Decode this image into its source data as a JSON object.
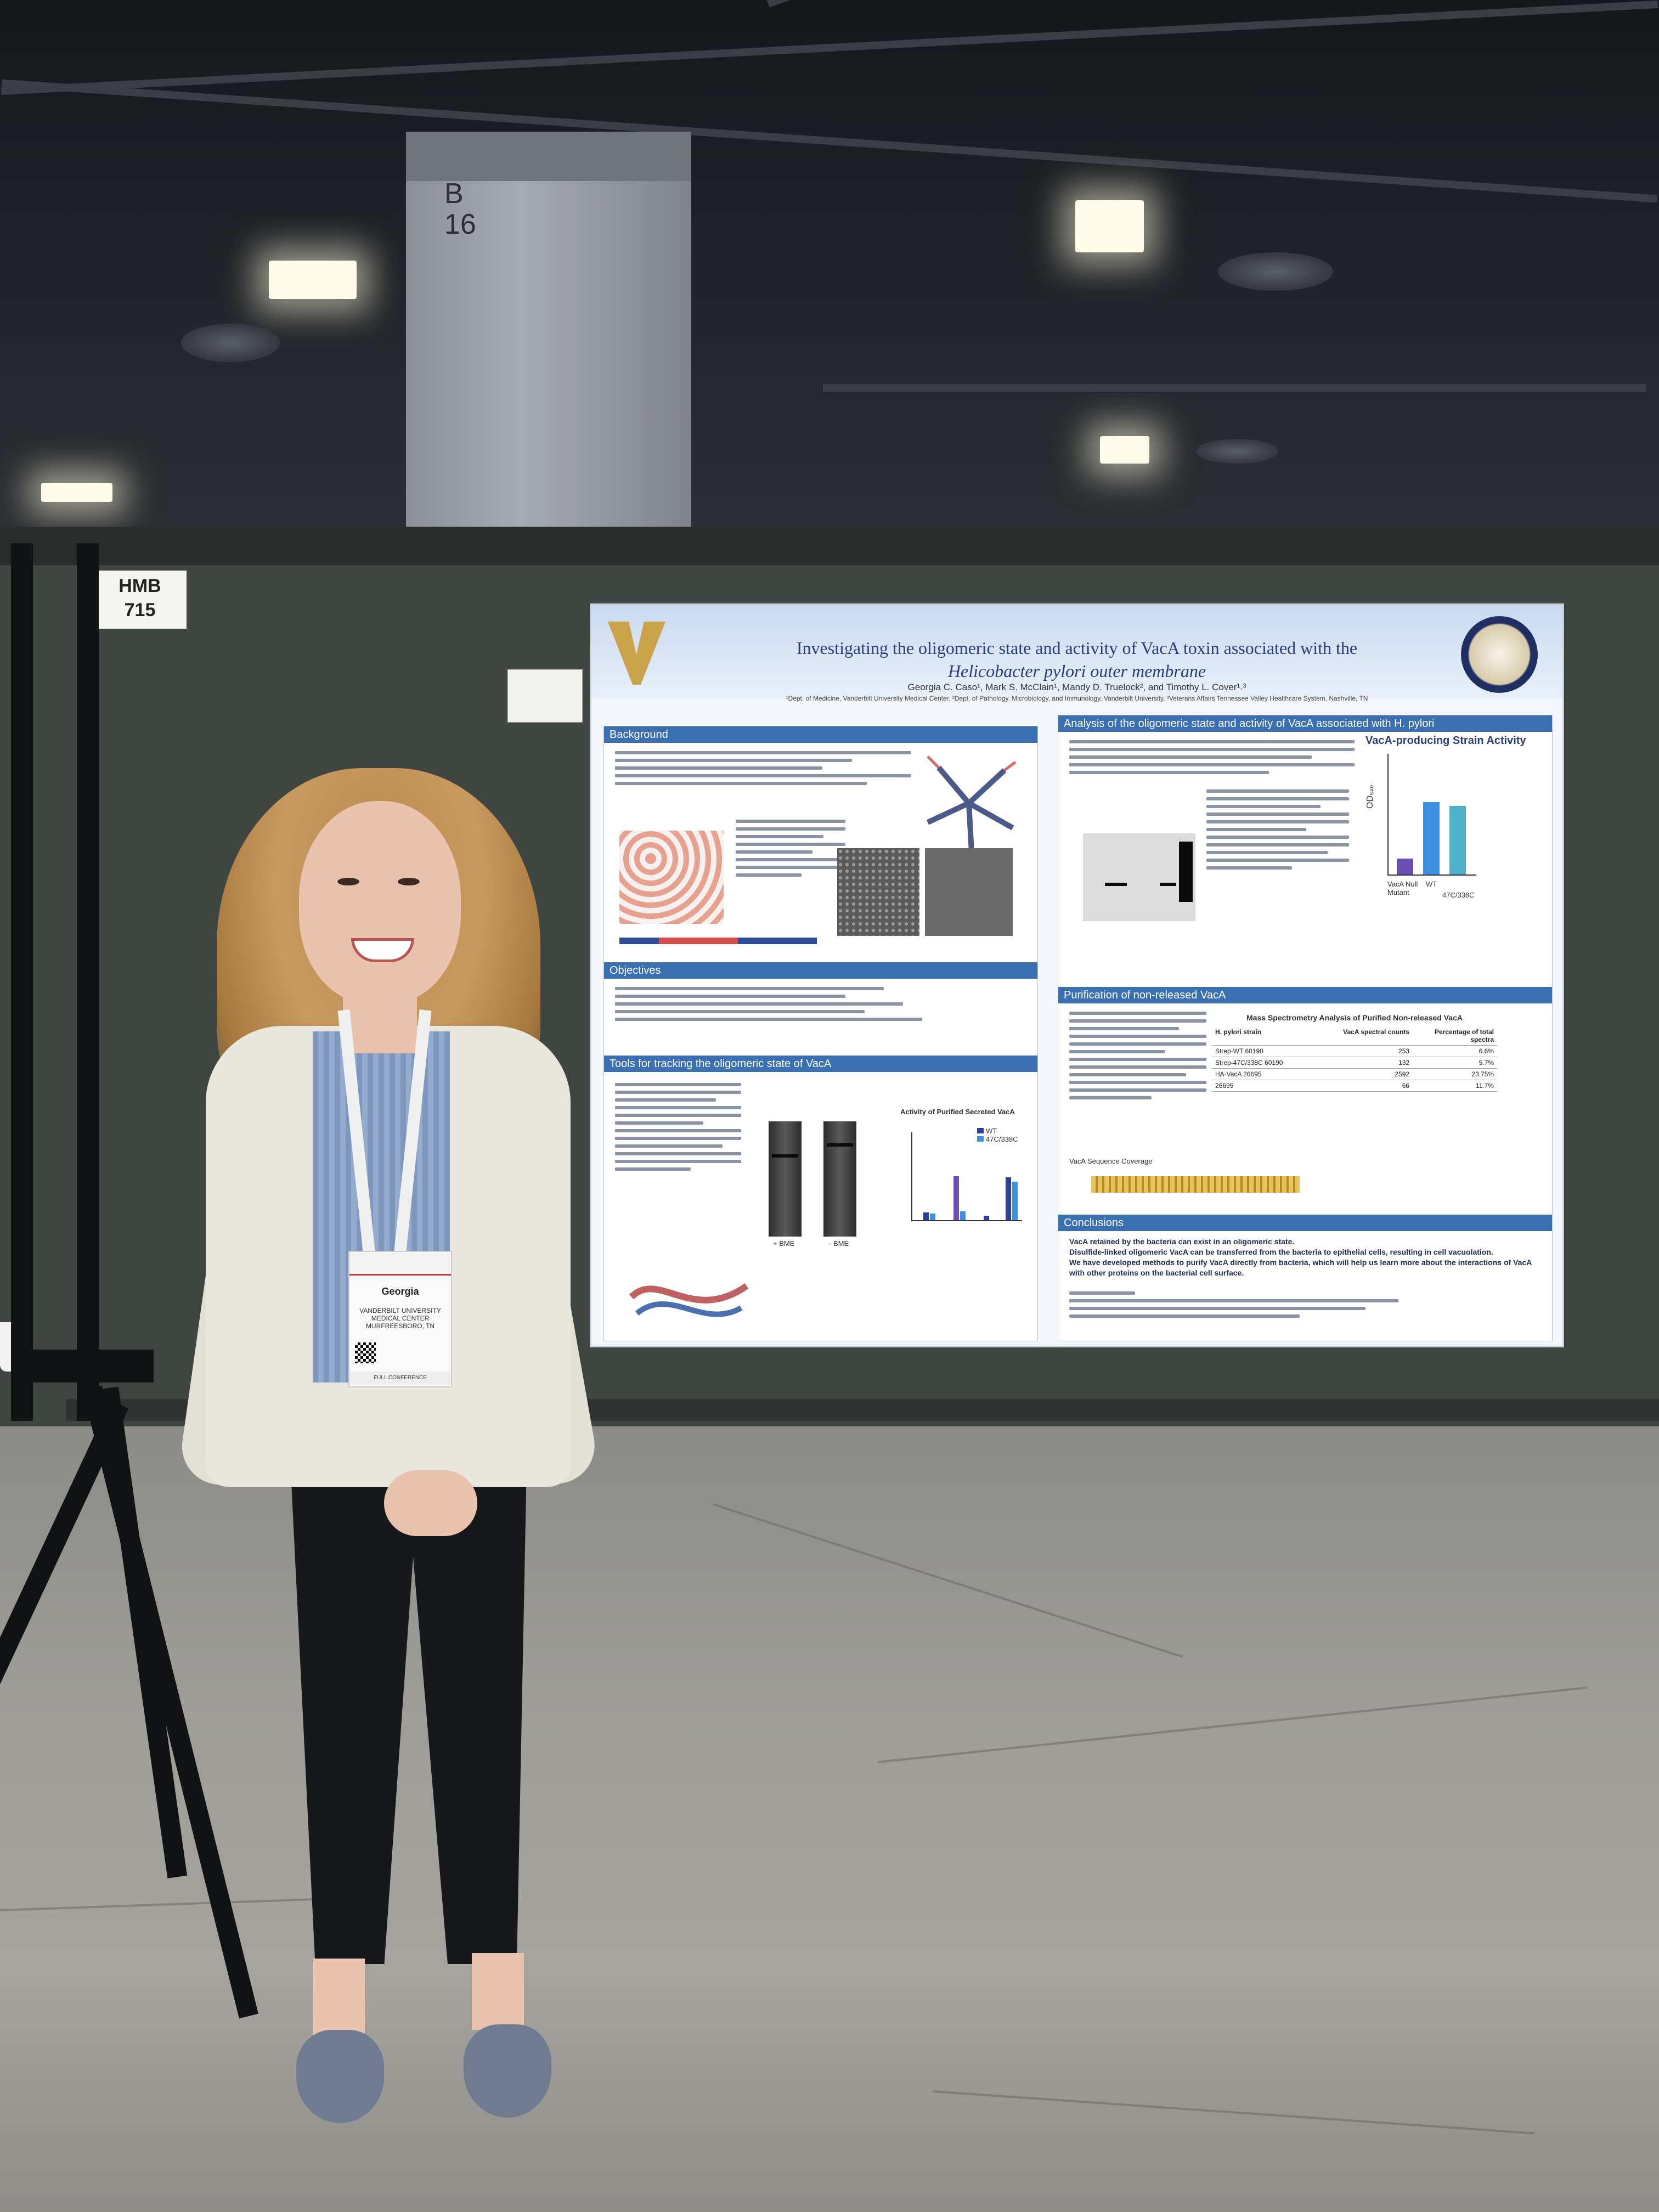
{
  "booth": {
    "tag_line1": "HMB",
    "tag_line2": "715"
  },
  "pillar": {
    "label_line1": "B",
    "label_line2": "16"
  },
  "poster": {
    "title_line1": "Investigating the oligomeric state and activity of VacA toxin associated with the",
    "title_line2": "Helicobacter pylori outer membrane",
    "authors": "Georgia C. Caso¹, Mark S. McClain¹, Mandy D. Truelock², and Timothy L. Cover¹˒³",
    "affiliations": "¹Dept. of Medicine, Vanderbilt University Medical Center, ²Dept. of Pathology, Microbiology, and Immunology, Vanderbilt University, ³Veterans Affairs Tennessee Valley Healthcare System, Nashville, TN",
    "sections": {
      "background": "Background",
      "objectives": "Objectives",
      "tools": "Tools for tracking the oligomeric state of VacA",
      "analysis": "Analysis of the oligomeric state and activity of VacA associated with H. pylori",
      "purification": "Purification of non-released VacA",
      "conclusions": "Conclusions"
    },
    "chart_titles": {
      "strain_activity": "VacA-producing Strain Activity",
      "secreted_activity": "Activity of Purified Secreted VacA",
      "mass_spec": "Mass Spectrometry Analysis of Purified Non-released VacA",
      "sequence": "VacA Sequence Coverage"
    },
    "strain_chart": {
      "ylabel": "OD₅₄₀",
      "categories": [
        "VacA Null Mutant",
        "WT",
        "47C/338C"
      ],
      "values": [
        0.04,
        0.18,
        0.17
      ],
      "ylim": [
        0,
        0.3
      ],
      "colors": [
        "#6a4fb5",
        "#3d8fe0",
        "#4fb0c9"
      ]
    },
    "mass_spec_table": {
      "headers": [
        "H. pylori strain",
        "VacA spectral counts",
        "Percentage of total spectra"
      ],
      "rows": [
        [
          "Strep-WT 60190",
          "253",
          "6.6%"
        ],
        [
          "Strep-47C/338C 60190",
          "132",
          "5.7%"
        ],
        [
          "HA-VacA 26695",
          "2592",
          "23.75%"
        ],
        [
          "26695",
          "66",
          "11.7%"
        ]
      ]
    },
    "conclusions": [
      "VacA retained by the bacteria can exist in an oligomeric state.",
      "Disulfide-linked oligomeric VacA can be transferred from the bacteria to epithelial cells, resulting in cell vacuolation.",
      "We have developed methods to purify VacA directly from bacteria, which will help us learn more about the interactions of VacA with other proteins on the bacterial cell surface."
    ],
    "gel_labels": [
      "+ BME",
      "- BME"
    ],
    "legend": [
      "WT",
      "47C/338C"
    ],
    "legend_colors": [
      "#2a3f9a",
      "#3d8fe0"
    ],
    "colors": {
      "header_blue": "#3a6fb2",
      "title_navy": "#2b3d78"
    }
  },
  "badge": {
    "name": "Georgia",
    "org": "VANDERBILT UNIVERSITY MEDICAL CENTER",
    "city": "MURFREESBORO, TN",
    "ribbon": "FULL CONFERENCE"
  }
}
